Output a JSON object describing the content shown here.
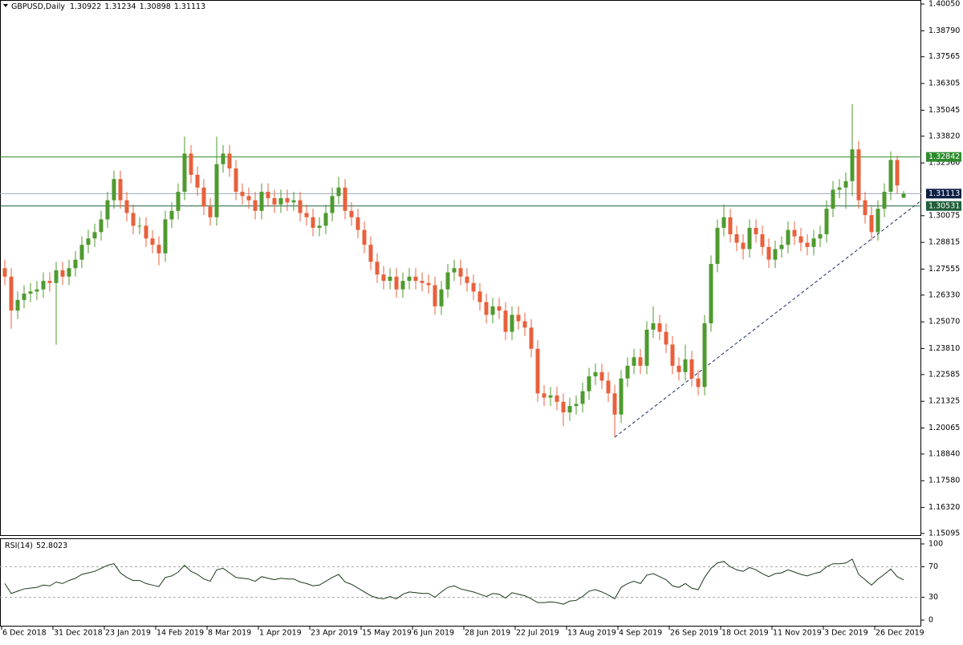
{
  "chart_data": [
    {
      "type": "candlestick",
      "title": "GBPUSD,Daily",
      "ohlc": [
        1.30922,
        1.31234,
        1.30898,
        1.31113
      ],
      "categories": [
        "6 Dec 2018",
        null,
        null,
        null,
        null,
        null,
        null,
        null,
        "31 Dec 2018",
        null,
        null,
        null,
        null,
        null,
        null,
        null,
        "23 Jan 2019",
        null,
        null,
        null,
        null,
        null,
        null,
        null,
        "14 Feb 2019",
        null,
        null,
        null,
        null,
        null,
        null,
        null,
        "8 Mar 2019",
        null,
        null,
        null,
        null,
        null,
        null,
        null,
        "1 Apr 2019",
        null,
        null,
        null,
        null,
        null,
        null,
        null,
        "23 Apr 2019",
        null,
        null,
        null,
        null,
        null,
        null,
        null,
        "15 May 2019",
        null,
        null,
        null,
        null,
        null,
        null,
        null,
        "6 Jun 2019",
        null,
        null,
        null,
        null,
        null,
        null,
        null,
        "28 Jun 2019",
        null,
        null,
        null,
        null,
        null,
        null,
        null,
        "22 Jul 2019",
        null,
        null,
        null,
        null,
        null,
        null,
        null,
        "13 Aug 2019",
        null,
        null,
        null,
        null,
        null,
        null,
        null,
        "4 Sep 2019",
        null,
        null,
        null,
        null,
        null,
        null,
        null,
        "26 Sep 2019",
        null,
        null,
        null,
        null,
        null,
        null,
        null,
        "18 Oct 2019",
        null,
        null,
        null,
        null,
        null,
        null,
        null,
        "11 Nov 2019",
        null,
        null,
        null,
        null,
        null,
        null,
        null,
        "3 Dec 2019",
        null,
        null,
        null,
        null,
        null,
        null,
        null,
        "26 Dec 2019",
        null,
        null,
        null,
        null
      ],
      "open": [
        1.276,
        1.272,
        1.256,
        1.261,
        1.264,
        1.265,
        1.266,
        1.27,
        1.269,
        1.275,
        1.272,
        1.276,
        1.28,
        1.287,
        1.29,
        1.293,
        1.299,
        1.308,
        1.318,
        1.308,
        1.302,
        1.296,
        1.296,
        1.29,
        1.287,
        1.283,
        1.299,
        1.303,
        1.312,
        1.33,
        1.32,
        1.314,
        1.305,
        1.3,
        1.325,
        1.33,
        1.323,
        1.312,
        1.31,
        1.308,
        1.303,
        1.312,
        1.309,
        1.306,
        1.309,
        1.307,
        1.308,
        1.302,
        1.3,
        1.295,
        1.296,
        1.302,
        1.31,
        1.314,
        1.303,
        1.3,
        1.294,
        1.287,
        1.279,
        1.273,
        1.27,
        1.272,
        1.266,
        1.27,
        1.272,
        1.27,
        1.269,
        1.268,
        1.258,
        1.266,
        1.274,
        1.276,
        1.272,
        1.269,
        1.265,
        1.26,
        1.254,
        1.258,
        1.256,
        1.246,
        1.254,
        1.251,
        1.248,
        1.238,
        1.217,
        1.215,
        1.216,
        1.213,
        1.208,
        1.211,
        1.212,
        1.218,
        1.225,
        1.227,
        1.223,
        1.217,
        1.207,
        1.224,
        1.23,
        1.234,
        1.23,
        1.247,
        1.25,
        1.246,
        1.24,
        1.23,
        1.227,
        1.233,
        1.224,
        1.22,
        1.25,
        1.278,
        1.295,
        1.3,
        1.292,
        1.288,
        1.285,
        1.295,
        1.292,
        1.286,
        1.28,
        1.285,
        1.287,
        1.294,
        1.291,
        1.288,
        1.286,
        1.29,
        1.292,
        1.304,
        1.313,
        1.314,
        1.317,
        1.332,
        1.308,
        1.301,
        1.293,
        1.304,
        1.312,
        1.327,
        1.30922
      ],
      "high": [
        1.28,
        1.276,
        1.265,
        1.268,
        1.269,
        1.27,
        1.274,
        1.274,
        1.279,
        1.279,
        1.28,
        1.284,
        1.291,
        1.294,
        1.297,
        1.303,
        1.312,
        1.322,
        1.322,
        1.312,
        1.306,
        1.3,
        1.3,
        1.294,
        1.291,
        1.303,
        1.307,
        1.316,
        1.338,
        1.334,
        1.324,
        1.318,
        1.309,
        1.338,
        1.334,
        1.334,
        1.327,
        1.316,
        1.314,
        1.312,
        1.316,
        1.316,
        1.313,
        1.313,
        1.313,
        1.312,
        1.312,
        1.306,
        1.304,
        1.3,
        1.306,
        1.314,
        1.319,
        1.318,
        1.307,
        1.304,
        1.298,
        1.291,
        1.283,
        1.277,
        1.276,
        1.276,
        1.274,
        1.276,
        1.276,
        1.274,
        1.273,
        1.272,
        1.27,
        1.278,
        1.28,
        1.28,
        1.276,
        1.273,
        1.269,
        1.264,
        1.262,
        1.262,
        1.26,
        1.258,
        1.258,
        1.255,
        1.252,
        1.242,
        1.221,
        1.22,
        1.22,
        1.217,
        1.215,
        1.216,
        1.222,
        1.229,
        1.231,
        1.231,
        1.227,
        1.221,
        1.228,
        1.234,
        1.238,
        1.238,
        1.251,
        1.258,
        1.254,
        1.25,
        1.244,
        1.234,
        1.24,
        1.237,
        1.228,
        1.254,
        1.282,
        1.299,
        1.306,
        1.304,
        1.296,
        1.292,
        1.299,
        1.299,
        1.296,
        1.29,
        1.289,
        1.291,
        1.298,
        1.298,
        1.295,
        1.292,
        1.294,
        1.296,
        1.308,
        1.317,
        1.318,
        1.321,
        1.3533,
        1.336,
        1.312,
        1.305,
        1.308,
        1.316,
        1.331,
        1.329,
        1.31234
      ],
      "low": [
        1.268,
        1.2474,
        1.252,
        1.257,
        1.26,
        1.261,
        1.262,
        1.265,
        1.2399,
        1.268,
        1.268,
        1.272,
        1.276,
        1.283,
        1.286,
        1.289,
        1.295,
        1.304,
        1.304,
        1.298,
        1.292,
        1.292,
        1.286,
        1.283,
        1.2773,
        1.279,
        1.295,
        1.299,
        1.308,
        1.316,
        1.31,
        1.301,
        1.296,
        1.296,
        1.321,
        1.319,
        1.308,
        1.306,
        1.304,
        1.299,
        1.299,
        1.305,
        1.302,
        1.302,
        1.303,
        1.303,
        1.298,
        1.296,
        1.291,
        1.291,
        1.292,
        1.298,
        1.306,
        1.299,
        1.296,
        1.29,
        1.283,
        1.275,
        1.269,
        1.266,
        1.266,
        1.262,
        1.262,
        1.266,
        1.266,
        1.265,
        1.264,
        1.254,
        1.254,
        1.262,
        1.27,
        1.268,
        1.265,
        1.261,
        1.256,
        1.25,
        1.25,
        1.252,
        1.242,
        1.242,
        1.247,
        1.244,
        1.234,
        1.213,
        1.211,
        1.211,
        1.209,
        1.2015,
        1.204,
        1.207,
        1.208,
        1.214,
        1.221,
        1.219,
        1.213,
        1.1964,
        1.203,
        1.22,
        1.226,
        1.226,
        1.226,
        1.243,
        1.242,
        1.236,
        1.226,
        1.223,
        1.223,
        1.22,
        1.216,
        1.216,
        1.246,
        1.274,
        1.291,
        1.288,
        1.284,
        1.28,
        1.281,
        1.288,
        1.282,
        1.276,
        1.276,
        1.281,
        1.283,
        1.287,
        1.284,
        1.282,
        1.282,
        1.286,
        1.288,
        1.3,
        1.309,
        1.304,
        1.31,
        1.304,
        1.297,
        1.289,
        1.289,
        1.3,
        1.308,
        1.311,
        1.30898
      ],
      "close": [
        1.272,
        1.256,
        1.261,
        1.264,
        1.265,
        1.266,
        1.27,
        1.269,
        1.275,
        1.272,
        1.276,
        1.28,
        1.287,
        1.29,
        1.293,
        1.299,
        1.308,
        1.318,
        1.308,
        1.302,
        1.296,
        1.296,
        1.29,
        1.287,
        1.283,
        1.299,
        1.303,
        1.312,
        1.33,
        1.32,
        1.314,
        1.305,
        1.3,
        1.325,
        1.33,
        1.323,
        1.312,
        1.31,
        1.308,
        1.303,
        1.312,
        1.309,
        1.306,
        1.309,
        1.307,
        1.308,
        1.302,
        1.3,
        1.295,
        1.296,
        1.302,
        1.31,
        1.314,
        1.303,
        1.3,
        1.294,
        1.287,
        1.279,
        1.273,
        1.27,
        1.272,
        1.266,
        1.27,
        1.272,
        1.27,
        1.269,
        1.268,
        1.258,
        1.266,
        1.274,
        1.276,
        1.272,
        1.269,
        1.265,
        1.26,
        1.254,
        1.258,
        1.256,
        1.246,
        1.254,
        1.251,
        1.248,
        1.238,
        1.217,
        1.215,
        1.216,
        1.213,
        1.208,
        1.211,
        1.212,
        1.218,
        1.225,
        1.227,
        1.223,
        1.217,
        1.207,
        1.224,
        1.23,
        1.234,
        1.23,
        1.247,
        1.25,
        1.246,
        1.24,
        1.23,
        1.227,
        1.233,
        1.224,
        1.22,
        1.25,
        1.278,
        1.295,
        1.3,
        1.292,
        1.288,
        1.285,
        1.295,
        1.292,
        1.286,
        1.28,
        1.285,
        1.287,
        1.294,
        1.291,
        1.288,
        1.286,
        1.29,
        1.292,
        1.304,
        1.313,
        1.314,
        1.317,
        1.332,
        1.308,
        1.301,
        1.293,
        1.304,
        1.312,
        1.327,
        1.315,
        1.31113
      ],
      "up_color": "#4f9a2f",
      "down_color": "#e8603c",
      "ylim": [
        1.1498,
        1.4024
      ],
      "yticks": [
        {
          "value": 1.4005,
          "label": "1.40050"
        },
        {
          "value": 1.3879,
          "label": "1.38790"
        },
        1.37565,
        1.36305,
        1.35045,
        {
          "value": 1.3382,
          "label": "1.33820"
        },
        {
          "value": 1.3256,
          "label": "1.32560"
        },
        1.30075,
        1.28815,
        1.27555,
        {
          "value": 1.2633,
          "label": "1.26330"
        },
        {
          "value": 1.2507,
          "label": "1.25070"
        },
        {
          "value": 1.2381,
          "label": "1.23810"
        },
        1.22585,
        1.21325,
        1.20065,
        {
          "value": 1.1884,
          "label": "1.18840"
        },
        {
          "value": 1.1758,
          "label": "1.17580"
        },
        {
          "value": 1.1632,
          "label": "1.16320"
        },
        1.15095
      ],
      "levels": [
        {
          "value": 1.32842,
          "color": "#2e8b2e",
          "label_color": "#2e8b2e"
        },
        {
          "value": 1.31113,
          "color": "#9aabbd",
          "label_color": "#0d1f45"
        },
        {
          "value": 1.30531,
          "color": "#1f5f3a",
          "label_color": "#1f5f3a"
        }
      ]
    },
    {
      "type": "line",
      "title": "RSI(14)",
      "value": 52.8023,
      "color": "#1a3a1a",
      "values": [
        48,
        35,
        38,
        41,
        42,
        43,
        46,
        45,
        50,
        48,
        52,
        55,
        60,
        62,
        64,
        68,
        72,
        74,
        62,
        56,
        52,
        52,
        48,
        46,
        44,
        56,
        58,
        63,
        72,
        64,
        60,
        54,
        51,
        66,
        68,
        62,
        56,
        55,
        54,
        51,
        57,
        55,
        53,
        55,
        54,
        54,
        50,
        48,
        45,
        46,
        51,
        56,
        60,
        50,
        47,
        42,
        37,
        32,
        29,
        28,
        31,
        28,
        34,
        37,
        36,
        35,
        35,
        30,
        37,
        43,
        45,
        41,
        39,
        37,
        34,
        31,
        35,
        34,
        29,
        36,
        34,
        32,
        28,
        23,
        23,
        24,
        23,
        21,
        25,
        26,
        31,
        38,
        40,
        37,
        33,
        28,
        43,
        48,
        51,
        48,
        59,
        61,
        57,
        53,
        45,
        43,
        48,
        42,
        40,
        56,
        68,
        75,
        77,
        70,
        66,
        64,
        69,
        66,
        61,
        57,
        61,
        62,
        66,
        63,
        60,
        58,
        61,
        63,
        70,
        74,
        74,
        75,
        80,
        60,
        53,
        46,
        54,
        60,
        67,
        57,
        52.8
      ],
      "ylim": [
        -8.4,
        106.3
      ],
      "yticks": [
        100,
        70,
        30,
        0
      ],
      "levels": [
        70,
        30
      ]
    }
  ]
}
